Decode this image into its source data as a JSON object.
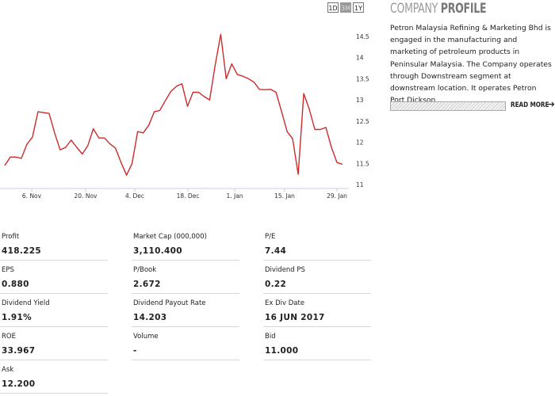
{
  "range_buttons": [
    {
      "label": "1D",
      "active": false
    },
    {
      "label": "3M",
      "active": true
    },
    {
      "label": "1Y",
      "active": false
    }
  ],
  "chart_data": {
    "type": "line",
    "color": "#cc2b2b",
    "x_ticks": [
      "6. Nov",
      "20. Nov",
      "4. Dec",
      "18. Dec",
      "1. Jan",
      "15. Jan",
      "29. Jan"
    ],
    "y_ticks": [
      "11",
      "11.5",
      "12",
      "12.5",
      "13",
      "13.5",
      "14",
      "14.5"
    ],
    "ylim": [
      11,
      14.5
    ],
    "y": [
      11.45,
      11.65,
      11.65,
      11.62,
      11.95,
      12.12,
      12.72,
      12.7,
      12.68,
      12.22,
      11.82,
      11.88,
      12.05,
      11.88,
      11.72,
      11.92,
      12.32,
      12.1,
      12.1,
      11.96,
      11.86,
      11.52,
      11.22,
      11.5,
      12.25,
      12.22,
      12.4,
      12.72,
      12.75,
      12.98,
      13.2,
      13.32,
      13.38,
      12.85,
      13.18,
      13.18,
      13.08,
      13.0,
      13.82,
      14.55,
      13.5,
      13.85,
      13.6,
      13.56,
      13.5,
      13.42,
      13.25,
      13.24,
      13.25,
      13.18,
      12.72,
      12.25,
      12.08,
      11.24,
      13.15,
      12.78,
      12.3,
      12.3,
      12.35,
      11.88,
      11.52,
      11.48
    ]
  },
  "profile": {
    "title_light": "COMPANY",
    "title_bold": "PROFILE",
    "description": "Petron Malaysia Refining & Marketing Bhd is engaged in the manufacturing and marketing of petroleum products in Peninsular Malaysia. The Company operates through Downstream segment at downstream location. It operates Petron Port Dickson...",
    "read_more": "READ MORE"
  },
  "stats": [
    {
      "label": "Profit",
      "value": "418.225"
    },
    {
      "label": "Market Cap (000,000)",
      "value": "3,110.400"
    },
    {
      "label": "P/E",
      "value": "7.44"
    },
    {
      "label": "EPS",
      "value": "0.880"
    },
    {
      "label": "P/Book",
      "value": "2.672"
    },
    {
      "label": "Dividend PS",
      "value": "0.22"
    },
    {
      "label": "Dividend Yield",
      "value": "1.91%"
    },
    {
      "label": "Dividend Payout Rate",
      "value": "14.203"
    },
    {
      "label": "Ex Div Date",
      "value": "16 JUN 2017"
    },
    {
      "label": "ROE",
      "value": "33.967"
    },
    {
      "label": "Volume",
      "value": "-"
    },
    {
      "label": "Bid",
      "value": "11.000"
    },
    {
      "label": "Ask",
      "value": "12.200"
    }
  ]
}
